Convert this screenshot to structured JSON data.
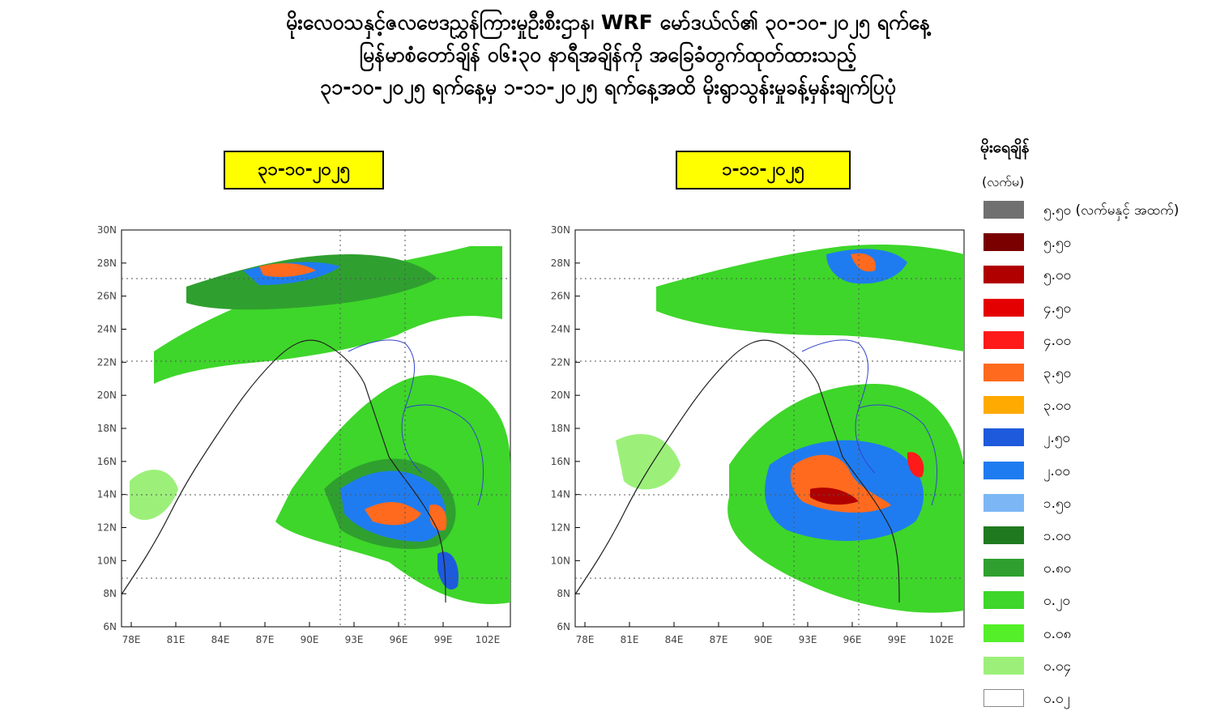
{
  "title": {
    "line1": "မိုးလေဝသနှင့်ဇလဗေဒညွှန်ကြားမှုဦးစီးဌာန၊ WRF မော်ဒယ်လ်၏ ၃၀-၁၀-၂၀၂၅ ရက်နေ့",
    "line2": "မြန်မာစံတော်ချိန် ၀၆:၃၀ နာရီအချိန်ကို အခြေခံတွက်ထုတ်ထားသည့်",
    "line3": "၃၁-၁၀-၂၀၂၅ ရက်နေ့မှ ၁-၁၁-၂၀၂၅ ရက်နေ့အထိ မိုးရွာသွန်းမှုခန့်မှန်းချက်ပြပုံ"
  },
  "maps": [
    {
      "date_label": "၃၁-၁၀-၂၀၂၅"
    },
    {
      "date_label": "၁-၁၁-၂၀၂၅"
    }
  ],
  "axes": {
    "lat_labels": [
      "30N",
      "28N",
      "26N",
      "24N",
      "22N",
      "20N",
      "18N",
      "16N",
      "14N",
      "12N",
      "10N",
      "8N",
      "6N"
    ],
    "lon_labels": [
      "78E",
      "81E",
      "84E",
      "87E",
      "90E",
      "93E",
      "96E",
      "99E",
      "102E"
    ]
  },
  "legend": {
    "title": "မိုးရေချိန်",
    "unit": "(လက်မ)",
    "items": [
      {
        "label": "၅.၅၀ (လက်မနှင့် အထက်)",
        "color": "#707070"
      },
      {
        "label": "၅.၅၀",
        "color": "#7a0000"
      },
      {
        "label": "၅.၀၀",
        "color": "#b00000"
      },
      {
        "label": "၄.၅၀",
        "color": "#e40000"
      },
      {
        "label": "၄.၀၀",
        "color": "#ff1a1a"
      },
      {
        "label": "၃.၅၀",
        "color": "#ff6a1e"
      },
      {
        "label": "၃.၀၀",
        "color": "#ffaa00"
      },
      {
        "label": "၂.၅၀",
        "color": "#1e5adc"
      },
      {
        "label": "၂.၀၀",
        "color": "#1f7cf0"
      },
      {
        "label": "၁.၅၀",
        "color": "#7cb6f5"
      },
      {
        "label": "၁.၀၀",
        "color": "#1f7a1f"
      },
      {
        "label": "၀.၈၀",
        "color": "#2fa02f"
      },
      {
        "label": "၀.၂၀",
        "color": "#3ed62a"
      },
      {
        "label": "၀.၀၈",
        "color": "#55ef2a"
      },
      {
        "label": "၀.၀၄",
        "color": "#9cf07a"
      },
      {
        "label": "၀.၀၂",
        "color": "#ffffff"
      }
    ]
  }
}
